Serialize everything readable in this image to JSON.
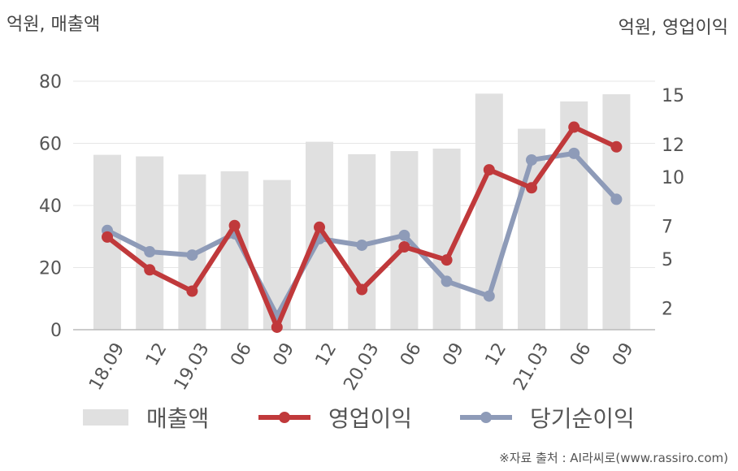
{
  "units": {
    "left": "억원, 매출액",
    "right": "억원, 영업이익"
  },
  "source": "※자료 출처 : AI라씨로(www.rassiro.com)",
  "colors": {
    "revenue": "#e0e0e0",
    "operating_profit": "#c0393b",
    "net_income": "#8e9bb8",
    "grid": "#e6e6e6",
    "axis": "#bbbbbb",
    "tick_text": "#555555"
  },
  "chart_data": {
    "type": "bar+line",
    "categories": [
      "18.09",
      "12",
      "19.03",
      "06",
      "09",
      "12",
      "20.03",
      "06",
      "09",
      "12",
      "21.03",
      "06",
      "09"
    ],
    "y_left": {
      "ticks": [
        0,
        20,
        40,
        60,
        80
      ],
      "range": [
        0,
        80
      ]
    },
    "y_right": {
      "ticks": [
        "2",
        "5",
        "7",
        "10",
        "12",
        "15"
      ],
      "range": [
        0.65,
        15.8
      ]
    },
    "grid": true,
    "legend_position": "bottom",
    "series": [
      {
        "name": "매출액",
        "type": "bar",
        "axis": "left",
        "values": [
          56.3,
          55.8,
          50.0,
          51.0,
          48.2,
          60.5,
          56.5,
          57.5,
          58.3,
          76.0,
          64.7,
          73.5,
          75.8
        ]
      },
      {
        "name": "영업이익",
        "type": "line",
        "axis": "right",
        "values": [
          6.3,
          4.3,
          3.0,
          7.0,
          0.8,
          6.9,
          3.1,
          5.7,
          4.9,
          10.4,
          9.3,
          13.0,
          11.8
        ]
      },
      {
        "name": "당기순이익",
        "type": "line",
        "axis": "right",
        "values": [
          6.7,
          5.4,
          5.2,
          6.5,
          1.5,
          6.2,
          5.8,
          6.4,
          3.6,
          2.7,
          11.0,
          11.4,
          8.6
        ]
      }
    ]
  }
}
